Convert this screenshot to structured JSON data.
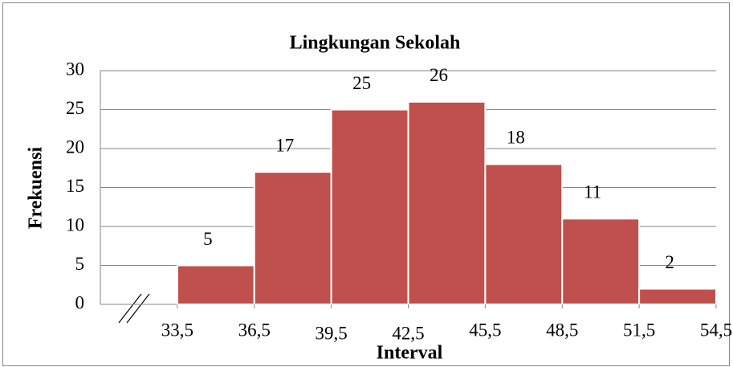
{
  "chart_data": {
    "type": "histogram",
    "title": "Lingkungan Sekolah",
    "xlabel": "Interval",
    "ylabel": "Frekuensi",
    "bins": [
      {
        "value": 33.5,
        "label": "33,5"
      },
      {
        "value": 36.5,
        "label": "36,5"
      },
      {
        "value": 39.5,
        "label": "39,5"
      },
      {
        "value": 42.5,
        "label": "42,5"
      },
      {
        "value": 45.5,
        "label": "45,5"
      },
      {
        "value": 48.5,
        "label": "48,5"
      },
      {
        "value": 51.5,
        "label": "51,5"
      },
      {
        "value": 54.5,
        "label": "54,5"
      }
    ],
    "values": [
      5,
      17,
      25,
      26,
      18,
      11,
      2
    ],
    "color": "#c0504d",
    "xlim": [
      30.5,
      54.5
    ],
    "ylim": [
      0,
      30
    ],
    "yticks": [
      0,
      5,
      10,
      15,
      20,
      25,
      30
    ],
    "grid": true
  }
}
